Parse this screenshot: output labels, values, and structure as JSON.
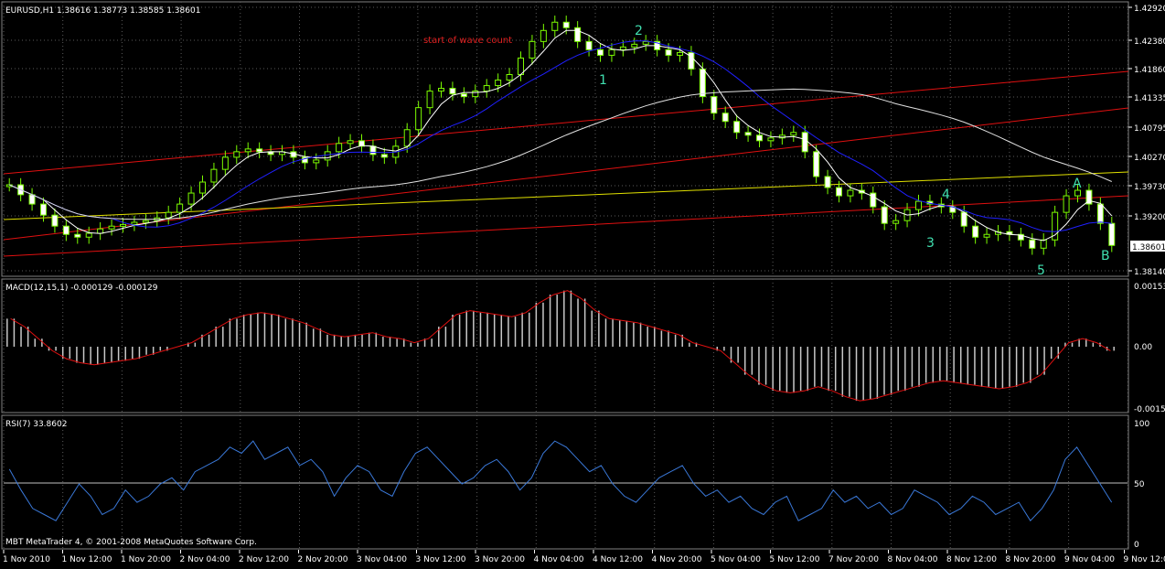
{
  "main_header": "EURUSD,H1  1.38616 1.38773 1.38585 1.38601",
  "annotation": "start of wave count",
  "wave_labels": [
    "1",
    "2",
    "3",
    "4",
    "5",
    "A",
    "B"
  ],
  "price_ticks": [
    "1.42920",
    "1.42380",
    "1.41860",
    "1.41335",
    "1.40795",
    "1.40270",
    "1.39730",
    "1.39200",
    "1.38140"
  ],
  "current_price": "1.38601",
  "macd_header": "MACD(12,15,1) -0.000129 -0.000129",
  "macd_ticks": [
    "0.00153",
    "0.00",
    "-0.00153"
  ],
  "rsi_header": "RSI(7) 33.8602",
  "rsi_ticks": [
    "100",
    "50",
    "0"
  ],
  "footer": "MBT MetaTrader 4, © 2001-2008 MetaQuotes Software Corp.",
  "time_labels": [
    "1 Nov 2010",
    "1 Nov 12:00",
    "1 Nov 20:00",
    "2 Nov 04:00",
    "2 Nov 12:00",
    "2 Nov 20:00",
    "3 Nov 04:00",
    "3 Nov 12:00",
    "3 Nov 20:00",
    "4 Nov 04:00",
    "4 Nov 12:00",
    "4 Nov 20:00",
    "5 Nov 04:00",
    "5 Nov 12:00",
    "7 Nov 20:00",
    "8 Nov 04:00",
    "8 Nov 12:00",
    "8 Nov 20:00",
    "9 Nov 04:00",
    "9 Nov 12:00"
  ],
  "colors": {
    "background": "#000000",
    "grid": "#5a5a5a",
    "bull": "#ffffff",
    "bear": "#ffffff",
    "candle_fill": "#7cfc00",
    "wave": "#40e0b0",
    "annotation": "#e02020",
    "ma_fast": "#ffffff",
    "ma_mid": "#2020ff",
    "ma_slow": "#e0e0e0",
    "channel": "#e01010",
    "yellow": "#e0e000",
    "macd_hist": "#c8c8c8",
    "macd_signal": "#e01010",
    "rsi_line": "#3a78d8"
  },
  "chart_data": [
    {
      "type": "candlestick",
      "title": "EURUSD,H1",
      "ylim": [
        1.3814,
        1.4292
      ],
      "close": [
        1.397,
        1.3952,
        1.3935,
        1.3915,
        1.3895,
        1.388,
        1.3875,
        1.3882,
        1.389,
        1.3895,
        1.3898,
        1.3902,
        1.3905,
        1.391,
        1.392,
        1.3935,
        1.3955,
        1.3975,
        1.3998,
        1.402,
        1.403,
        1.4035,
        1.403,
        1.4025,
        1.403,
        1.402,
        1.401,
        1.4015,
        1.403,
        1.4045,
        1.405,
        1.404,
        1.4025,
        1.402,
        1.404,
        1.407,
        1.411,
        1.414,
        1.4145,
        1.4135,
        1.413,
        1.414,
        1.415,
        1.416,
        1.417,
        1.42,
        1.423,
        1.425,
        1.4265,
        1.4255,
        1.423,
        1.4215,
        1.4205,
        1.4215,
        1.422,
        1.4225,
        1.423,
        1.4215,
        1.4205,
        1.421,
        1.418,
        1.413,
        1.41,
        1.4085,
        1.4065,
        1.406,
        1.405,
        1.4055,
        1.406,
        1.4065,
        1.403,
        1.3985,
        1.3965,
        1.395,
        1.396,
        1.3955,
        1.393,
        1.39,
        1.3905,
        1.3925,
        1.394,
        1.3935,
        1.393,
        1.392,
        1.3895,
        1.3875,
        1.388,
        1.3885,
        1.388,
        1.387,
        1.3855,
        1.387,
        1.392,
        1.395,
        1.396,
        1.3935,
        1.39,
        1.386
      ]
    },
    {
      "type": "bar",
      "title": "MACD(12,15,1)",
      "ylim": [
        -0.00153,
        0.00153
      ],
      "values": [
        0.0007,
        0.0005,
        0.0002,
        -0.0001,
        -0.0003,
        -0.0004,
        -0.00045,
        -0.0004,
        -0.00035,
        -0.0003,
        -0.0002,
        -0.0001,
        0.0,
        0.0001,
        0.0003,
        0.0005,
        0.0007,
        0.0008,
        0.00085,
        0.0008,
        0.0007,
        0.0006,
        0.00045,
        0.0003,
        0.00025,
        0.0003,
        0.00035,
        0.00025,
        0.0002,
        0.0001,
        0.0002,
        0.0005,
        0.0008,
        0.0009,
        0.00085,
        0.0008,
        0.00075,
        0.00085,
        0.0011,
        0.0013,
        0.0014,
        0.0012,
        0.0009,
        0.0007,
        0.00065,
        0.0006,
        0.0005,
        0.0004,
        0.0003,
        0.0001,
        0.0,
        -0.0001,
        -0.0004,
        -0.0007,
        -0.00095,
        -0.0011,
        -0.00115,
        -0.0011,
        -0.001,
        -0.0011,
        -0.00125,
        -0.00135,
        -0.0013,
        -0.0012,
        -0.0011,
        -0.001,
        -0.0009,
        -0.00085,
        -0.0009,
        -0.00095,
        -0.001,
        -0.00105,
        -0.001,
        -0.0009,
        -0.0007,
        -0.0003,
        0.0001,
        0.0002,
        0.0001,
        -0.0001
      ]
    },
    {
      "type": "line",
      "title": "RSI(7)",
      "ylim": [
        0,
        100
      ],
      "values": [
        62,
        45,
        30,
        25,
        20,
        35,
        50,
        40,
        25,
        30,
        45,
        35,
        40,
        50,
        55,
        45,
        60,
        65,
        70,
        80,
        75,
        85,
        70,
        75,
        80,
        65,
        70,
        60,
        40,
        55,
        65,
        60,
        45,
        40,
        60,
        75,
        80,
        70,
        60,
        50,
        55,
        65,
        70,
        60,
        45,
        55,
        75,
        85,
        80,
        70,
        60,
        65,
        50,
        40,
        35,
        45,
        55,
        60,
        65,
        50,
        40,
        45,
        35,
        40,
        30,
        25,
        35,
        40,
        20,
        25,
        30,
        45,
        35,
        40,
        30,
        35,
        25,
        30,
        45,
        40,
        35,
        25,
        30,
        40,
        35,
        25,
        30,
        35,
        20,
        30,
        45,
        70,
        80,
        65,
        50,
        35
      ]
    }
  ]
}
